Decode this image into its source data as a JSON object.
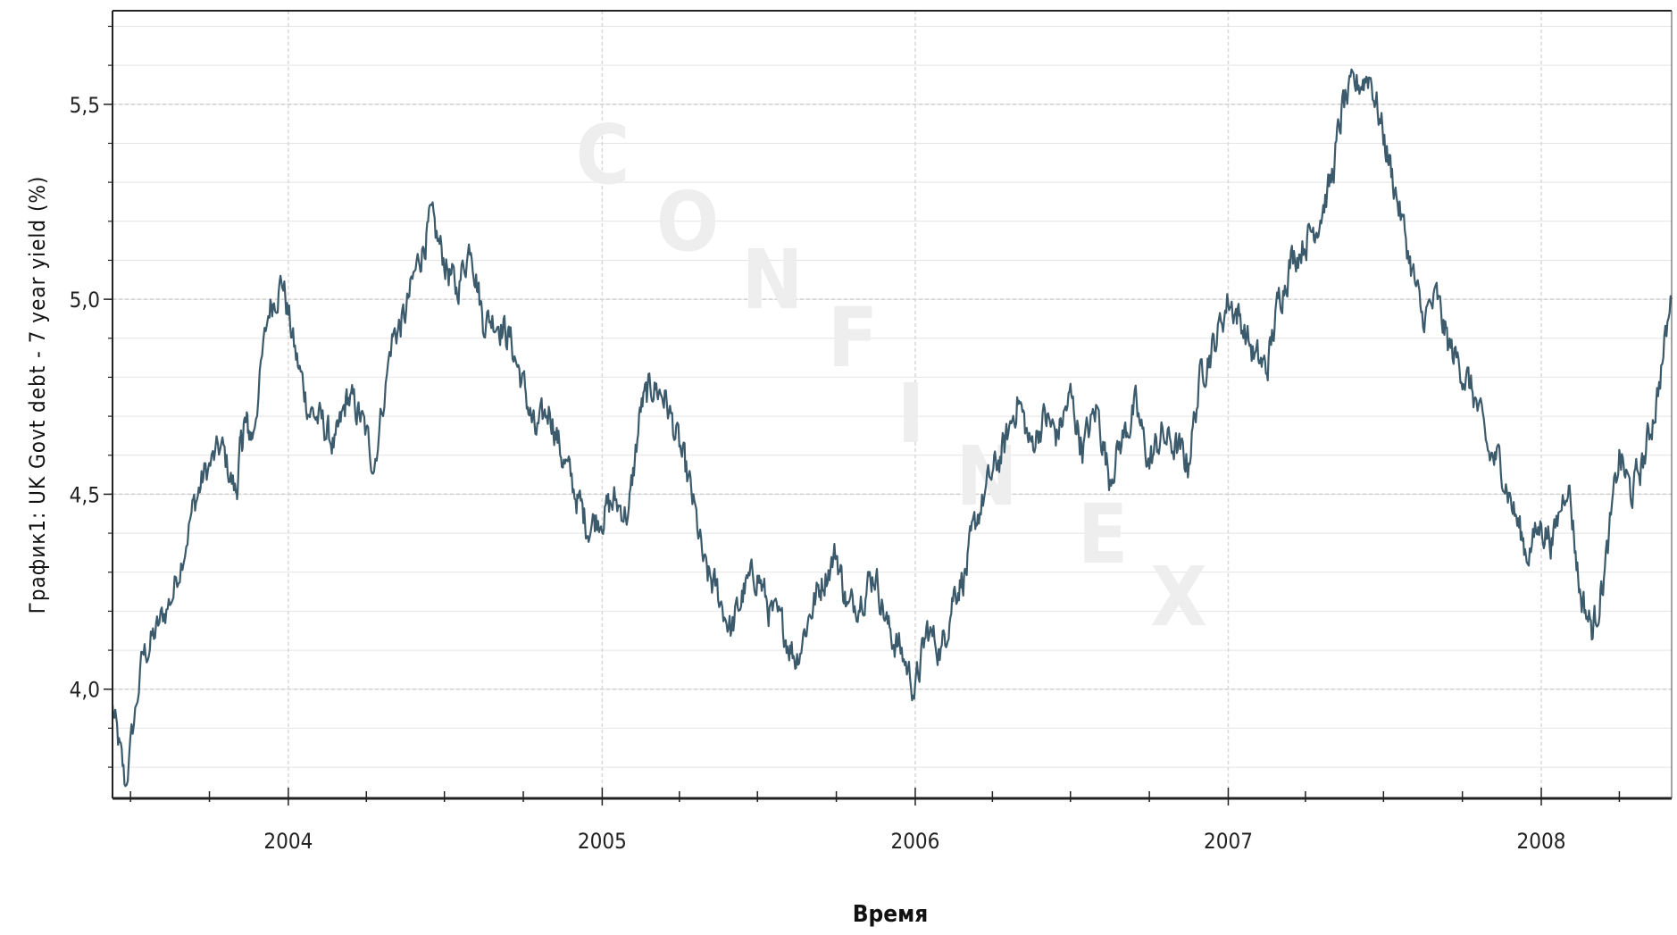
{
  "chart_data": {
    "type": "line",
    "xlabel": "Время",
    "ylabel": "График1: UK Govt debt - 7 year yield (%)",
    "x_range": [
      "2003-06-10",
      "2008-06-01"
    ],
    "ylim": [
      3.72,
      5.74
    ],
    "y_ticks": [
      {
        "value": 4.0,
        "label": "4,0"
      },
      {
        "value": 4.5,
        "label": "4,5"
      },
      {
        "value": 5.0,
        "label": "5,0"
      },
      {
        "value": 5.5,
        "label": "5,5"
      }
    ],
    "x_ticks": [
      {
        "value": "2004-01-01",
        "label": "2004"
      },
      {
        "value": "2005-01-01",
        "label": "2005"
      },
      {
        "value": "2006-01-01",
        "label": "2006"
      },
      {
        "value": "2007-01-01",
        "label": "2007"
      },
      {
        "value": "2008-01-01",
        "label": "2008"
      }
    ],
    "grid": true,
    "line_color": "#3b5a6b",
    "series": [
      {
        "x": [
          "2003-06-10",
          "2003-06-25",
          "2003-07-15",
          "2003-08-01",
          "2003-08-20",
          "2003-09-10",
          "2003-09-25",
          "2003-10-15",
          "2003-11-01",
          "2003-11-10",
          "2003-11-20",
          "2003-12-10",
          "2003-12-25",
          "2004-01-10",
          "2004-01-25",
          "2004-02-10",
          "2004-02-25",
          "2004-03-10",
          "2004-03-25",
          "2004-04-10",
          "2004-05-01",
          "2004-05-15",
          "2004-06-01",
          "2004-06-15",
          "2004-07-01",
          "2004-07-15",
          "2004-08-01",
          "2004-08-15",
          "2004-09-01",
          "2004-09-15",
          "2004-10-01",
          "2004-10-15",
          "2004-11-01",
          "2004-11-15",
          "2004-12-01",
          "2004-12-15",
          "2005-01-01",
          "2005-01-15",
          "2005-02-01",
          "2005-02-15",
          "2005-03-01",
          "2005-03-15",
          "2005-04-01",
          "2005-04-15",
          "2005-05-01",
          "2005-05-15",
          "2005-06-01",
          "2005-06-15",
          "2005-07-01",
          "2005-07-15",
          "2005-08-01",
          "2005-08-15",
          "2005-09-01",
          "2005-09-15",
          "2005-10-01",
          "2005-10-15",
          "2005-11-01",
          "2005-11-15",
          "2005-12-01",
          "2005-12-15",
          "2006-01-01",
          "2006-01-15",
          "2006-02-01",
          "2006-02-15",
          "2006-03-01",
          "2006-03-15",
          "2006-04-01",
          "2006-04-15",
          "2006-05-01",
          "2006-05-15",
          "2006-06-01",
          "2006-06-15",
          "2006-07-01",
          "2006-07-15",
          "2006-08-01",
          "2006-08-15",
          "2006-09-01",
          "2006-09-15",
          "2006-10-01",
          "2006-10-15",
          "2006-11-01",
          "2006-11-15",
          "2006-12-01",
          "2006-12-15",
          "2007-01-01",
          "2007-01-15",
          "2007-02-01",
          "2007-02-15",
          "2007-03-01",
          "2007-03-15",
          "2007-04-01",
          "2007-04-15",
          "2007-05-01",
          "2007-05-15",
          "2007-06-01",
          "2007-06-15",
          "2007-07-01",
          "2007-07-15",
          "2007-08-01",
          "2007-08-15",
          "2007-09-01",
          "2007-09-15",
          "2007-10-01",
          "2007-10-15",
          "2007-11-01",
          "2007-11-15",
          "2007-12-01",
          "2007-12-15",
          "2008-01-01",
          "2008-01-15",
          "2008-02-01",
          "2008-02-15",
          "2008-03-01",
          "2008-03-15",
          "2008-04-01",
          "2008-04-15",
          "2008-05-01",
          "2008-05-15",
          "2008-06-01"
        ],
        "y": [
          3.95,
          3.75,
          4.08,
          4.15,
          4.25,
          4.45,
          4.55,
          4.62,
          4.5,
          4.68,
          4.65,
          4.98,
          5.05,
          4.85,
          4.72,
          4.68,
          4.62,
          4.75,
          4.7,
          4.58,
          4.9,
          4.95,
          5.1,
          5.2,
          5.1,
          5.02,
          5.15,
          4.95,
          4.95,
          4.9,
          4.78,
          4.65,
          4.72,
          4.6,
          4.5,
          4.42,
          4.45,
          4.48,
          4.45,
          4.72,
          4.78,
          4.75,
          4.62,
          4.5,
          4.3,
          4.25,
          4.15,
          4.25,
          4.3,
          4.2,
          4.15,
          4.08,
          4.2,
          4.28,
          4.35,
          4.2,
          4.25,
          4.3,
          4.15,
          4.1,
          4.0,
          4.15,
          4.1,
          4.25,
          4.3,
          4.45,
          4.55,
          4.62,
          4.75,
          4.62,
          4.7,
          4.65,
          4.75,
          4.62,
          4.72,
          4.55,
          4.65,
          4.72,
          4.58,
          4.65,
          4.62,
          4.58,
          4.82,
          4.88,
          5.0,
          4.95,
          4.85,
          4.82,
          5.0,
          5.1,
          5.15,
          5.2,
          5.3,
          5.5,
          5.55,
          5.58,
          5.42,
          5.28,
          5.1,
          4.95,
          5.0,
          4.88,
          4.82,
          4.75,
          4.6,
          4.58,
          4.45,
          4.35,
          4.42,
          4.38,
          4.55,
          4.25,
          4.15,
          4.3,
          4.6,
          4.5,
          4.6,
          4.75,
          5.0
        ]
      }
    ]
  },
  "watermark": {
    "letters": [
      "C",
      "O",
      "N",
      "F",
      "I",
      "N",
      "E",
      "X"
    ]
  }
}
